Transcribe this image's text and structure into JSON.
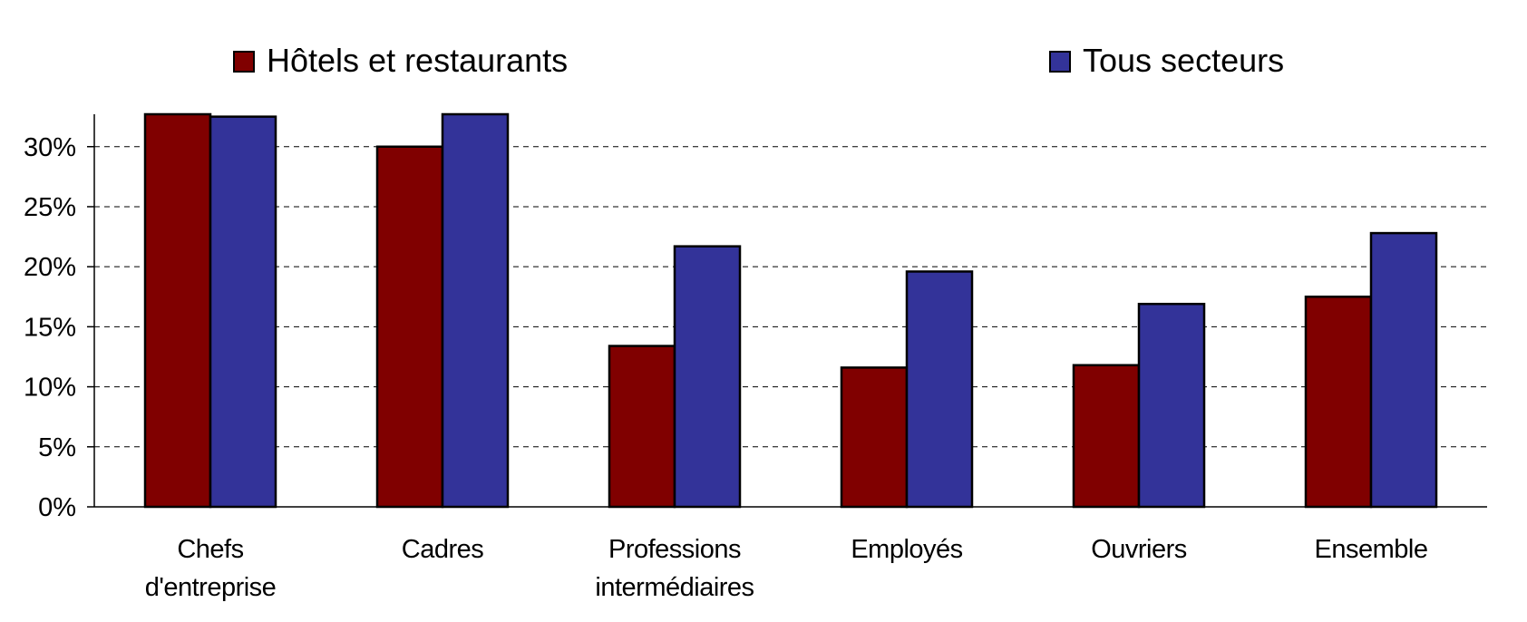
{
  "chart_data": {
    "type": "bar",
    "title": "",
    "xlabel": "",
    "ylabel": "",
    "categories": [
      [
        "Chefs",
        "d'entreprise"
      ],
      [
        "Cadres"
      ],
      [
        "Professions",
        "intermédiaires"
      ],
      [
        "Employés"
      ],
      [
        "Ouvriers"
      ],
      [
        "Ensemble"
      ]
    ],
    "series": [
      {
        "name": "Hôtels et restaurants",
        "color": "#800000",
        "values": [
          32.7,
          30.0,
          13.4,
          11.6,
          11.8,
          17.5
        ]
      },
      {
        "name": "Tous secteurs",
        "color": "#333399",
        "values": [
          32.5,
          32.7,
          21.7,
          19.6,
          16.9,
          22.8
        ]
      }
    ],
    "yticks": [
      "0%",
      "5%",
      "10%",
      "15%",
      "20%",
      "25%",
      "30%"
    ],
    "ytick_values": [
      0,
      5,
      10,
      15,
      20,
      25,
      30
    ],
    "ylim": [
      0,
      32.7
    ],
    "grid": true,
    "legend_position": "top"
  }
}
